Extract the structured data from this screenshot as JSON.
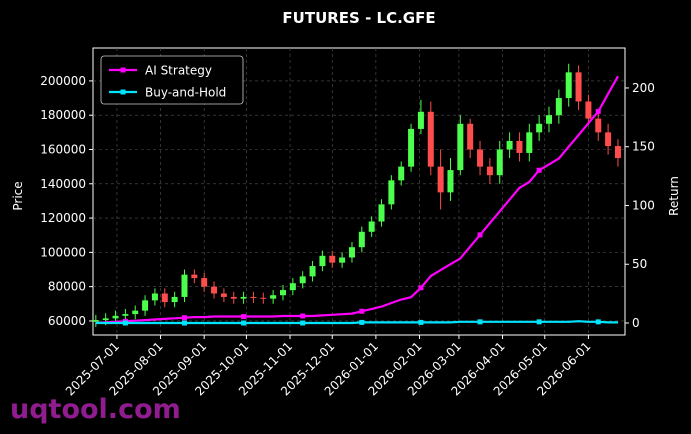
{
  "chart_data": {
    "type": "candlestick",
    "title": "FUTURES - LC.GFE",
    "ylabel": "Price",
    "y2label": "Return",
    "watermark": "uqtool.com",
    "x": [
      "2025-06-16",
      "2025-06-23",
      "2025-06-30",
      "2025-07-07",
      "2025-07-14",
      "2025-07-21",
      "2025-07-28",
      "2025-08-04",
      "2025-08-11",
      "2025-08-18",
      "2025-08-25",
      "2025-09-01",
      "2025-09-08",
      "2025-09-15",
      "2025-09-22",
      "2025-09-29",
      "2025-10-06",
      "2025-10-13",
      "2025-10-20",
      "2025-10-27",
      "2025-11-03",
      "2025-11-10",
      "2025-11-17",
      "2025-11-24",
      "2025-12-01",
      "2025-12-08",
      "2025-12-15",
      "2025-12-22",
      "2025-12-29",
      "2026-01-05",
      "2026-01-12",
      "2026-01-19",
      "2026-01-26",
      "2026-02-02",
      "2026-02-09",
      "2026-02-16",
      "2026-02-23",
      "2026-03-02",
      "2026-03-09",
      "2026-03-16",
      "2026-03-23",
      "2026-03-30",
      "2026-04-06",
      "2026-04-13",
      "2026-04-20",
      "2026-04-27",
      "2026-05-04",
      "2026-05-11",
      "2026-05-18",
      "2026-05-25",
      "2026-06-01",
      "2026-06-08",
      "2026-06-15",
      "2026-06-22"
    ],
    "open": [
      59500,
      60500,
      61500,
      63000,
      64000,
      66000,
      72000,
      76000,
      71000,
      74000,
      87000,
      85000,
      80000,
      76000,
      74000,
      73000,
      74000,
      73500,
      73000,
      75000,
      78000,
      82000,
      86000,
      92000,
      98000,
      94000,
      97000,
      103000,
      112000,
      118000,
      128000,
      142000,
      150000,
      172000,
      182000,
      150000,
      135000,
      148000,
      175000,
      160000,
      150000,
      145000,
      160000,
      165000,
      158000,
      170000,
      175000,
      180000,
      190000,
      205000,
      188000,
      178000,
      170000,
      162000
    ],
    "high": [
      63500,
      64500,
      66000,
      67000,
      69000,
      75000,
      79000,
      79000,
      77000,
      90000,
      90000,
      88000,
      83000,
      79000,
      77000,
      77000,
      77000,
      76500,
      78000,
      81000,
      85000,
      89000,
      95000,
      101000,
      101000,
      100000,
      106000,
      115000,
      121000,
      131000,
      145000,
      153000,
      175000,
      189000,
      188000,
      160000,
      155000,
      180000,
      178000,
      165000,
      155000,
      165000,
      170000,
      170000,
      175000,
      180000,
      185000,
      195000,
      210000,
      209000,
      192000,
      182000,
      175000,
      166000
    ],
    "low": [
      56500,
      57500,
      58500,
      60000,
      61000,
      63000,
      69000,
      68000,
      68000,
      71000,
      82000,
      77000,
      73000,
      71000,
      70000,
      70000,
      70500,
      70000,
      70000,
      72000,
      75000,
      79000,
      83000,
      89000,
      91000,
      91000,
      94000,
      100000,
      109000,
      115000,
      125000,
      139000,
      147000,
      169000,
      145000,
      125000,
      130000,
      145000,
      155000,
      145000,
      140000,
      140000,
      155000,
      153000,
      153000,
      165000,
      170000,
      175000,
      185000,
      183000,
      174000,
      165000,
      157000,
      150000
    ],
    "close": [
      60500,
      61500,
      63000,
      64000,
      66000,
      72000,
      76000,
      71000,
      74000,
      87000,
      85000,
      80000,
      76000,
      74000,
      73000,
      74000,
      73500,
      73000,
      75000,
      78000,
      82000,
      86000,
      92000,
      98000,
      94000,
      97000,
      103000,
      112000,
      118000,
      128000,
      142000,
      150000,
      172000,
      182000,
      150000,
      135000,
      148000,
      175000,
      160000,
      150000,
      145000,
      160000,
      165000,
      158000,
      170000,
      175000,
      180000,
      190000,
      205000,
      188000,
      178000,
      170000,
      162000,
      155000
    ],
    "up_color": "#4cff4c",
    "down_color": "#ff4c4c",
    "series": [
      {
        "name": "AI Strategy",
        "color": "#ff00ff",
        "axis": "y2",
        "values": [
          0,
          0.5,
          1,
          1.5,
          2,
          2.5,
          3,
          3.5,
          4,
          4.5,
          5,
          5,
          5.5,
          5.5,
          5.5,
          5.5,
          5.5,
          5.5,
          5.5,
          6,
          6,
          6,
          6,
          6.5,
          7,
          7.5,
          8,
          10,
          12,
          14,
          17,
          20,
          22,
          30,
          40,
          45,
          50,
          55,
          65,
          75,
          85,
          95,
          105,
          115,
          120,
          130,
          135,
          140,
          150,
          160,
          170,
          180,
          195,
          210
        ]
      },
      {
        "name": "Buy-and-Hold",
        "color": "#00e5ff",
        "axis": "y2",
        "values": [
          0,
          0,
          0,
          0,
          0,
          0,
          0,
          0,
          0,
          0,
          0,
          0,
          0,
          0,
          0,
          0,
          0,
          0,
          0,
          0,
          0,
          0,
          0,
          0,
          0,
          0,
          0,
          0.5,
          0.5,
          0.5,
          0.5,
          0.5,
          0.5,
          0.5,
          0.5,
          0.5,
          0.5,
          1,
          1,
          1,
          1,
          1,
          1,
          1,
          1,
          1,
          1,
          1,
          1,
          1.5,
          1,
          1,
          0.5,
          0.5
        ]
      }
    ],
    "xlim": [
      "2025-06-14",
      "2026-06-27"
    ],
    "xticks": [
      "2025-07-01",
      "2025-08-01",
      "2025-09-01",
      "2025-10-01",
      "2025-11-01",
      "2025-12-01",
      "2026-01-01",
      "2026-02-01",
      "2026-03-01",
      "2026-04-01",
      "2026-05-01",
      "2026-06-01"
    ],
    "ylim": [
      51800,
      219200
    ],
    "yticks": [
      60000,
      80000,
      100000,
      120000,
      140000,
      160000,
      180000,
      200000
    ],
    "y2lim": [
      -10.2,
      234
    ],
    "y2ticks": [
      0,
      50,
      100,
      150,
      200
    ],
    "grid": true,
    "legend": "upper left"
  }
}
